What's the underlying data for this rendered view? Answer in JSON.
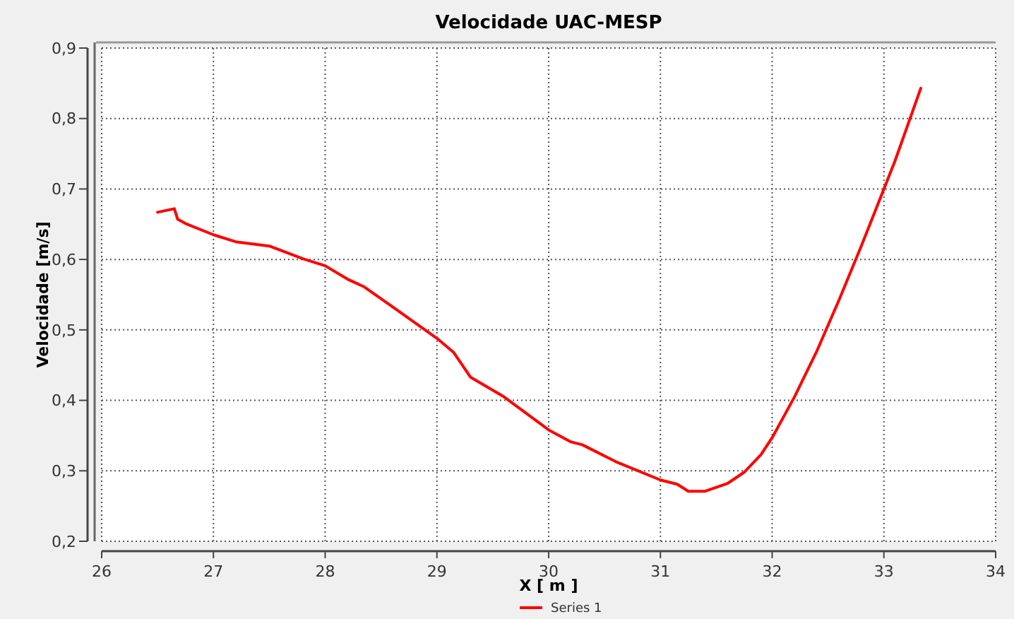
{
  "chart_data": {
    "type": "line",
    "title": "Velocidade UAC-MESP",
    "xlabel": "X [ m ]",
    "ylabel": "Velocidade [m/s]",
    "series": [
      {
        "name": "Series 1",
        "color": "#ff0000",
        "x": [
          26.5,
          26.65,
          26.68,
          26.75,
          27,
          27.2,
          27.5,
          27.8,
          28,
          28.2,
          28.35,
          28.6,
          29,
          29.15,
          29.3,
          29.6,
          30,
          30.2,
          30.3,
          30.6,
          31,
          31.15,
          31.25,
          31.4,
          31.6,
          31.75,
          31.9,
          32,
          32.2,
          32.4,
          32.6,
          32.8,
          33,
          33.1,
          33.33
        ],
        "values": [
          0.667,
          0.672,
          0.657,
          0.651,
          0.635,
          0.625,
          0.619,
          0.601,
          0.591,
          0.572,
          0.561,
          0.533,
          0.488,
          0.468,
          0.433,
          0.405,
          0.358,
          0.341,
          0.337,
          0.313,
          0.287,
          0.281,
          0.271,
          0.271,
          0.282,
          0.298,
          0.323,
          0.347,
          0.405,
          0.47,
          0.543,
          0.62,
          0.7,
          0.74,
          0.843
        ]
      }
    ],
    "xlim": [
      26,
      34
    ],
    "xticks": [
      26,
      27,
      28,
      29,
      30,
      31,
      32,
      33,
      34
    ],
    "ylim": [
      0.2,
      0.9
    ],
    "yticks": [
      {
        "value": 0.2,
        "label": "0,2"
      },
      {
        "value": 0.3,
        "label": "0,3"
      },
      {
        "value": 0.4,
        "label": "0,4"
      },
      {
        "value": 0.5,
        "label": "0,5"
      },
      {
        "value": 0.6,
        "label": "0,6"
      },
      {
        "value": 0.7,
        "label": "0,7"
      },
      {
        "value": 0.8,
        "label": "0,8"
      },
      {
        "value": 0.9,
        "label": "0,9"
      }
    ],
    "grid": true,
    "legend": "bottom",
    "line_style": "solid",
    "marker": "none"
  }
}
